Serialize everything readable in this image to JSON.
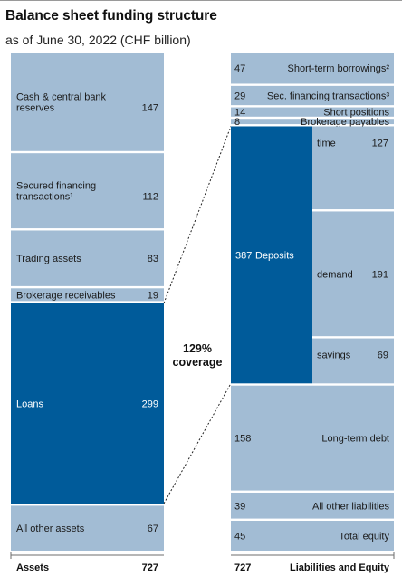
{
  "title": "Balance sheet funding structure",
  "subtitle": "as of June 30, 2022 (CHF billion)",
  "colors": {
    "light": "#a2bcd4",
    "dark": "#005b9a",
    "rule": "#6e6e6e"
  },
  "chart_data": {
    "type": "bar",
    "subtype": "stacked-columns",
    "center_label": [
      "129%",
      "coverage"
    ],
    "assets": {
      "segments": [
        {
          "label": [
            "Cash & central bank",
            "reserves"
          ],
          "value": 147,
          "value_text": "147",
          "highlight": false
        },
        {
          "label": [
            "Secured financing",
            "transactions¹"
          ],
          "value": 112,
          "value_text": "112",
          "highlight": false
        },
        {
          "label": [
            "Trading assets"
          ],
          "value": 83,
          "value_text": "83",
          "highlight": false
        },
        {
          "label": [
            "Brokerage receivables"
          ],
          "value": 19,
          "value_text": "19",
          "highlight": false
        },
        {
          "label": [
            "Loans"
          ],
          "value": 299,
          "value_text": "299",
          "highlight": true
        },
        {
          "label": [
            "All other assets"
          ],
          "value": 67,
          "value_text": "67",
          "highlight": false
        }
      ],
      "total_label": "Assets",
      "total_value": "727"
    },
    "liabilities": {
      "segments": [
        {
          "label": "Short-term borrowings²",
          "value": 47,
          "value_text": "47",
          "highlight": false
        },
        {
          "label": "Sec. financing transactions³",
          "value": 29,
          "value_text": "29",
          "highlight": false
        },
        {
          "label": "Short positions",
          "value": 14,
          "value_text": "14",
          "highlight": false
        },
        {
          "label": "Brokerage payables",
          "value": 8,
          "value_text": "8",
          "highlight": false
        },
        {
          "label": "Deposits",
          "value": 387,
          "value_text": "387",
          "highlight": true,
          "children": [
            {
              "label": "time",
              "value": 127,
              "value_text": "127"
            },
            {
              "label": "demand",
              "value": 191,
              "value_text": "191"
            },
            {
              "label": "savings",
              "value": 69,
              "value_text": "69"
            }
          ]
        },
        {
          "label": "Long-term debt",
          "value": 158,
          "value_text": "158",
          "highlight": false
        },
        {
          "label": "All other liabilities",
          "value": 39,
          "value_text": "39",
          "highlight": false
        },
        {
          "label": "Total equity",
          "value": 45,
          "value_text": "45",
          "highlight": false
        }
      ],
      "total_label": "Liabilities and Equity",
      "total_value": "727"
    }
  }
}
